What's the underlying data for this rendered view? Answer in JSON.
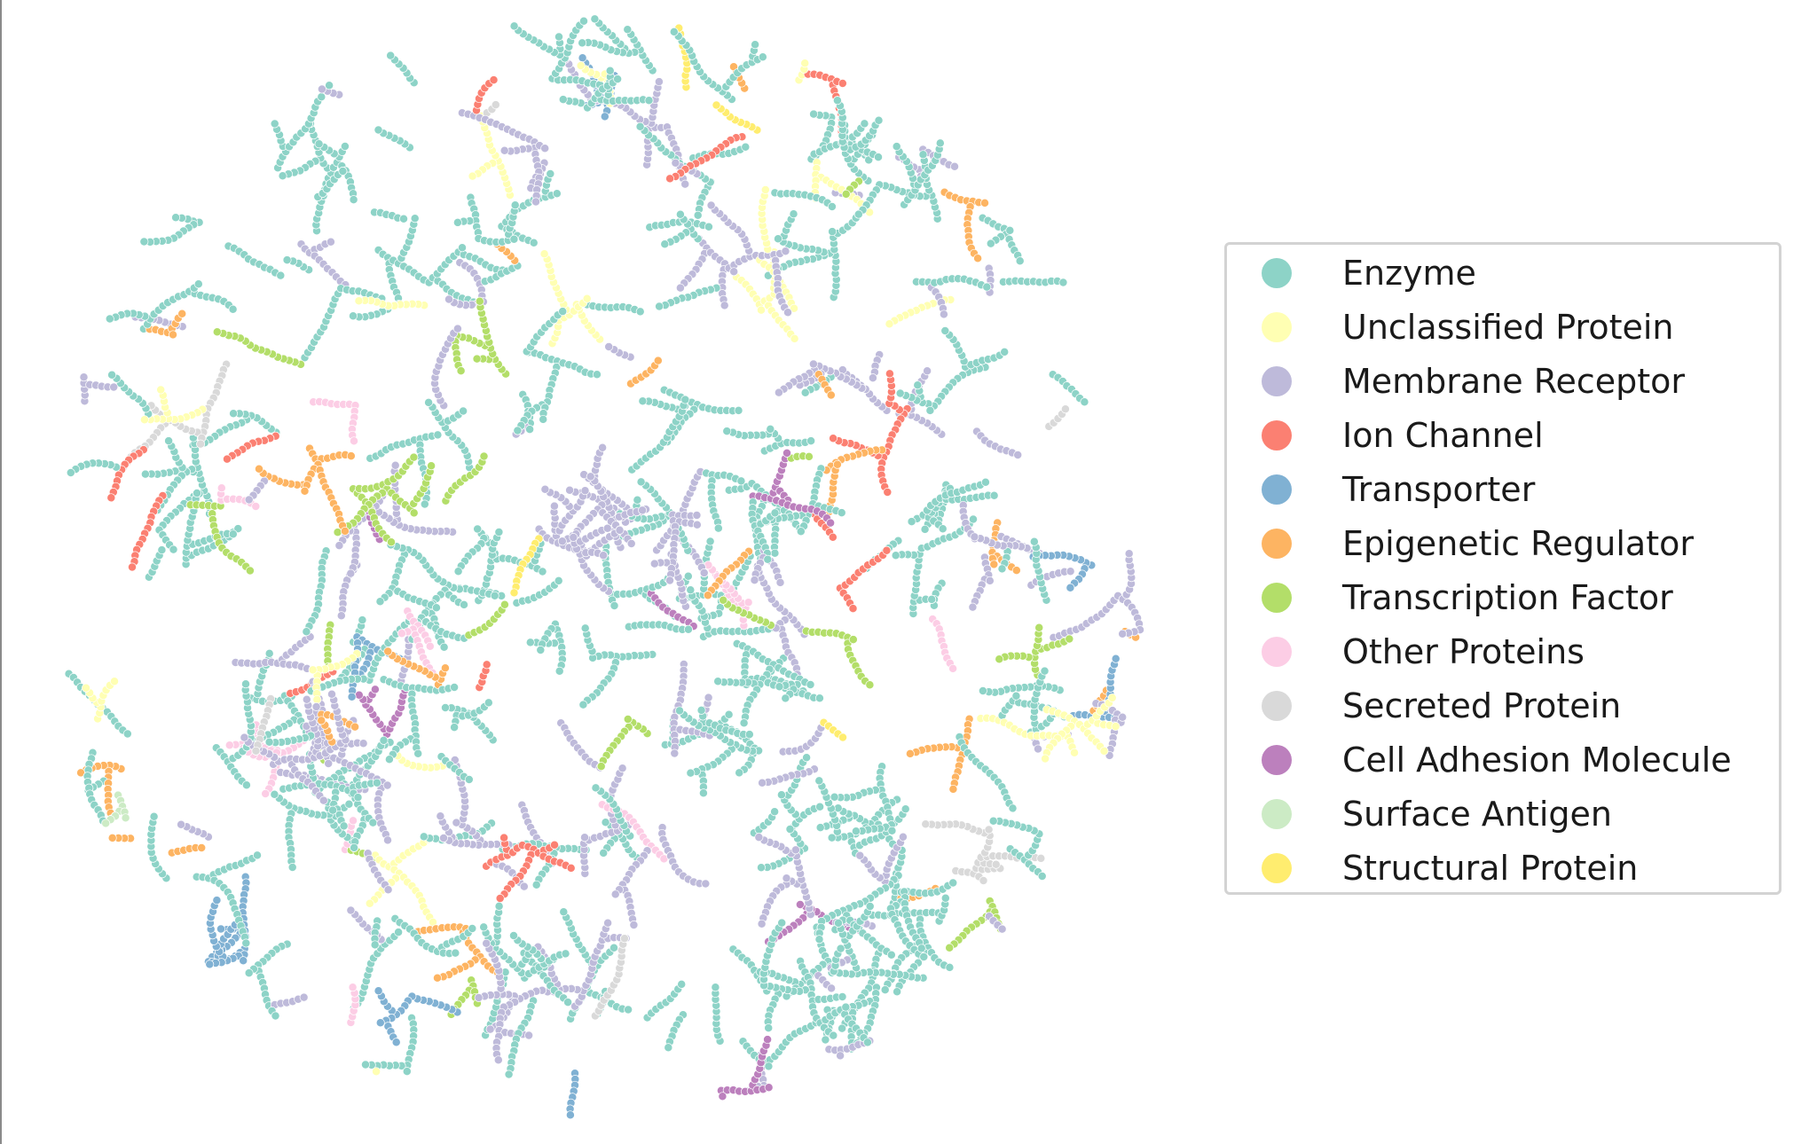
{
  "chart_data": {
    "type": "scatter",
    "title": "",
    "xlabel": "",
    "ylabel": "",
    "grid": false,
    "axes_visible": false,
    "legend_placement": "right",
    "series": [
      {
        "name": "Enzyme",
        "color": "#8dd3c7",
        "approx_share": 0.42
      },
      {
        "name": "Unclassified Protein",
        "color": "#ffffb3",
        "approx_share": 0.06
      },
      {
        "name": "Membrane Receptor",
        "color": "#bebada",
        "approx_share": 0.25
      },
      {
        "name": "Ion Channel",
        "color": "#fb8072",
        "approx_share": 0.05
      },
      {
        "name": "Transporter",
        "color": "#80b1d3",
        "approx_share": 0.03
      },
      {
        "name": "Epigenetic Regulator",
        "color": "#fdb462",
        "approx_share": 0.06
      },
      {
        "name": "Transcription Factor",
        "color": "#b3de69",
        "approx_share": 0.06
      },
      {
        "name": "Other Proteins",
        "color": "#fccde5",
        "approx_share": 0.03
      },
      {
        "name": "Secreted Protein",
        "color": "#d9d9d9",
        "approx_share": 0.01
      },
      {
        "name": "Cell Adhesion Molecule",
        "color": "#bc80bd",
        "approx_share": 0.01
      },
      {
        "name": "Surface Antigen",
        "color": "#ccebc5",
        "approx_share": 0.01
      },
      {
        "name": "Structural Protein",
        "color": "#ffed6f",
        "approx_share": 0.01
      }
    ]
  }
}
